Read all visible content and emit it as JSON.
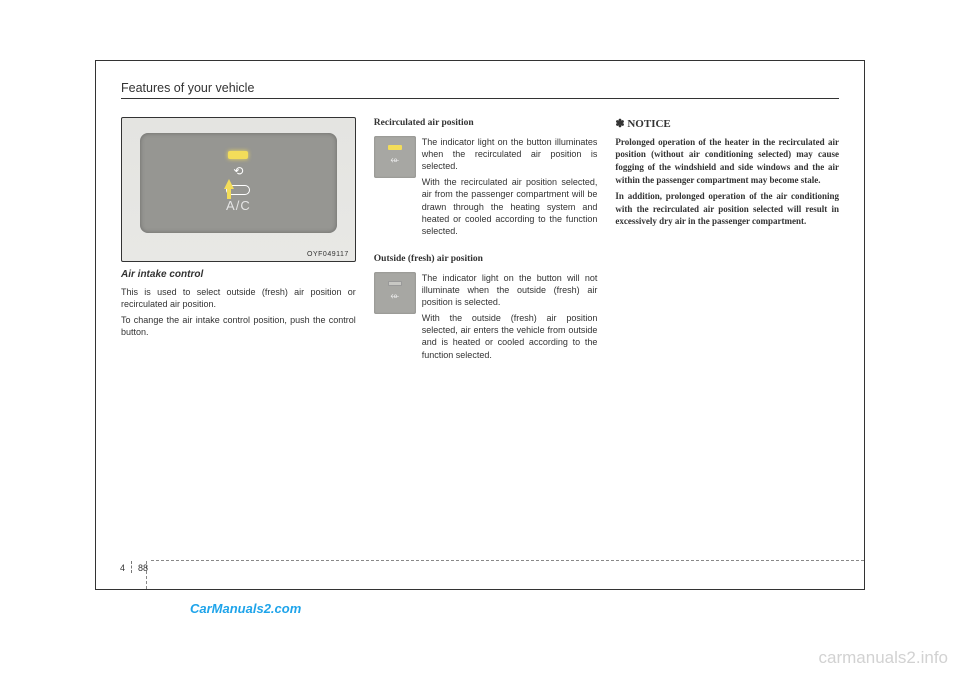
{
  "header": {
    "title": "Features of your vehicle"
  },
  "figure": {
    "ac_text": "A/C",
    "code": "OYF049117"
  },
  "col1": {
    "subtitle": "Air intake control",
    "para1": "This is used to select outside (fresh) air position or recirculated air position.",
    "para2": "To change the air intake control position, push the control button."
  },
  "col2": {
    "heading1": "Recirculated air position",
    "text1": "The indicator light on the button illuminates when the recirculated air position is selected.",
    "text1b": "With the recirculated air position selected, air from the passenger compartment will be drawn through the heating system and heated or cooled according to the function selected.",
    "heading2": "Outside (fresh) air position",
    "text2": "The indicator light on the button will not illuminate when the outside (fresh) air position is selected.",
    "text2b": "With the outside (fresh) air position selected, air enters the vehicle from outside and is heated or cooled according to the function selected."
  },
  "col3": {
    "notice_title": "✽ NOTICE",
    "notice_p1": "Prolonged operation of the heater in the recirculated air position (without air conditioning selected) may cause fogging of the windshield and side windows and the air within the passenger compartment may become stale.",
    "notice_p2": "In addition, prolonged operation of the air conditioning with the recirculated air position selected will result in excessively dry air in the passenger compartment."
  },
  "footer": {
    "chapter": "4",
    "page": "88"
  },
  "watermarks": {
    "wm1": "CarManuals2.com",
    "wm2": "carmanuals2.info"
  }
}
